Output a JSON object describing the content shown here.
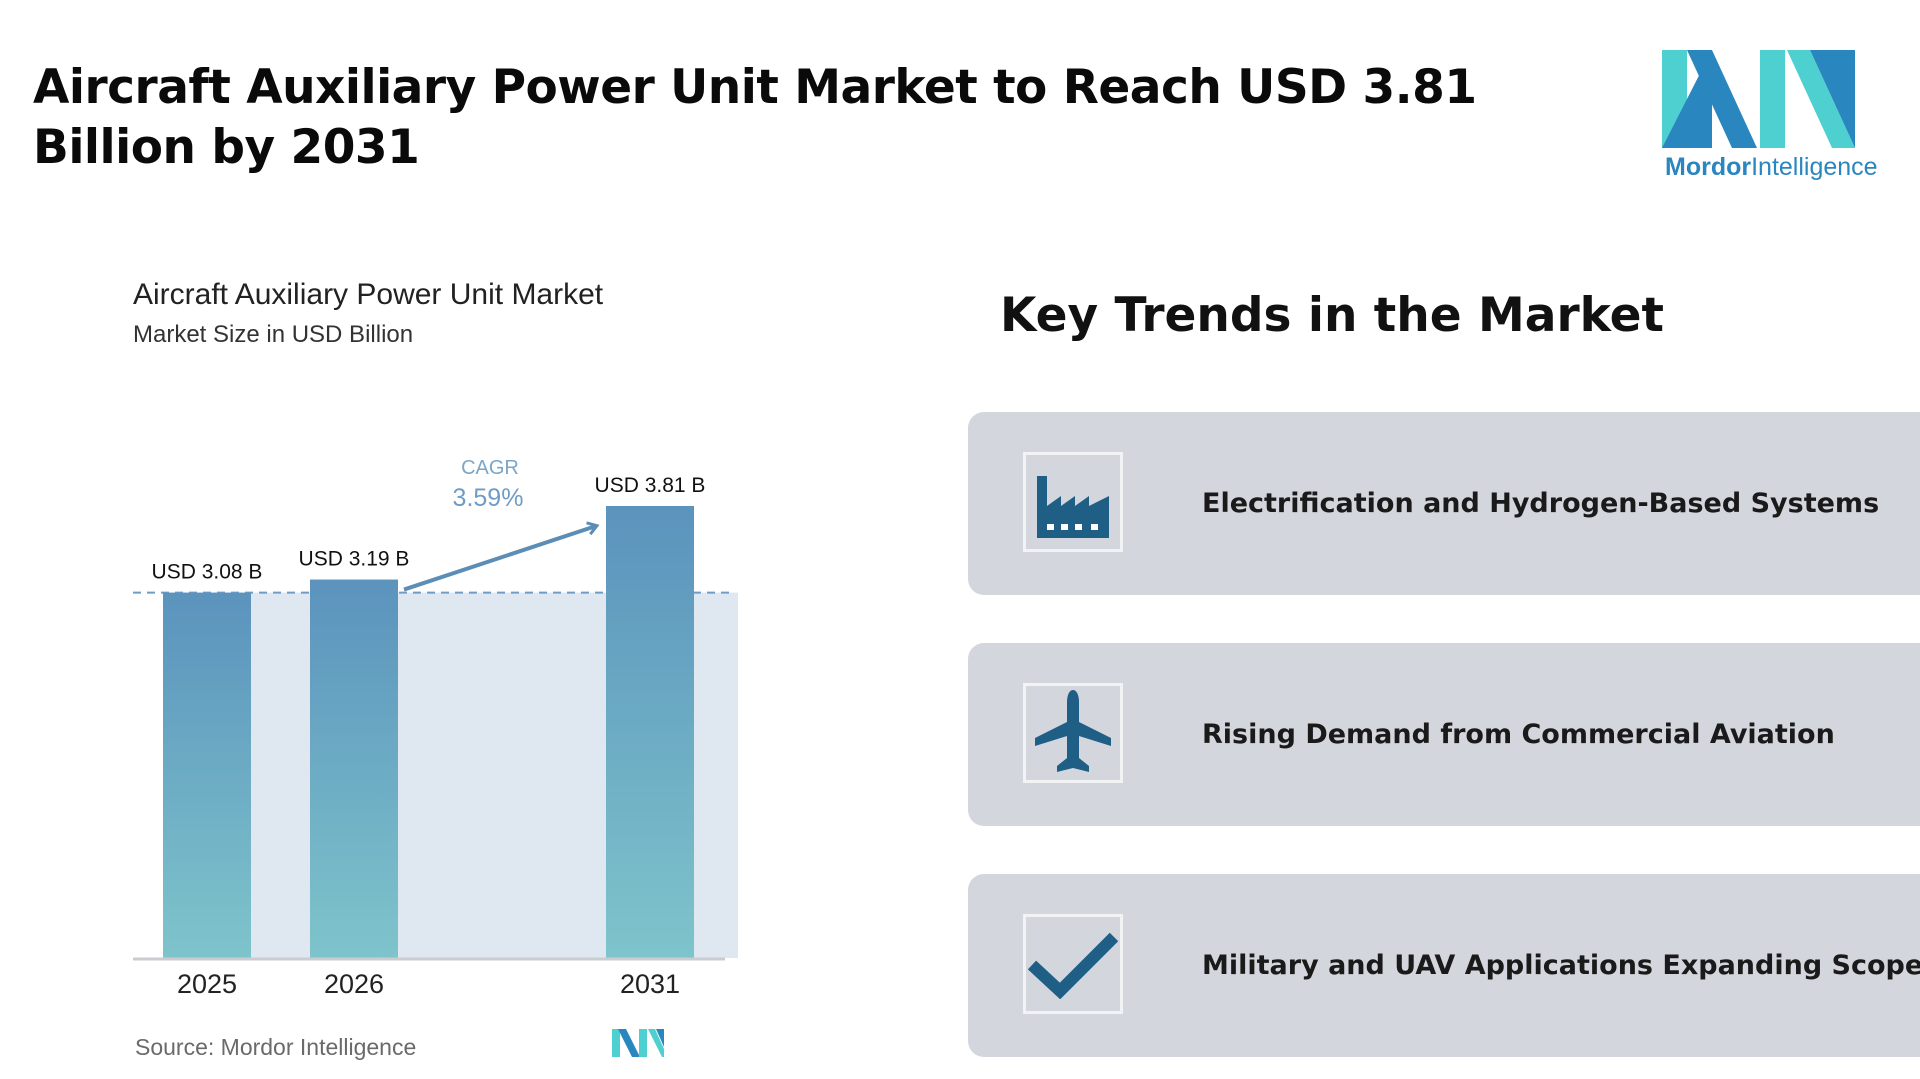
{
  "header": {
    "title": "Aircraft Auxiliary Power Unit Market to Reach USD 3.81 Billion by 2031",
    "logo_text_bold": "Mordor",
    "logo_text_light": "Intelligence"
  },
  "chart_data": {
    "type": "bar",
    "title": "Aircraft Auxiliary Power Unit Market",
    "subtitle": "Market Size in USD Billion",
    "categories": [
      "2025",
      "2026",
      "2031"
    ],
    "values": [
      3.08,
      3.19,
      3.81
    ],
    "data_labels": [
      "USD 3.08 B",
      "USD 3.19 B",
      "USD 3.81 B"
    ],
    "cagr_label": "CAGR",
    "cagr_value": "3.59%",
    "baseline_value": 3.08,
    "ylim": [
      0,
      3.81
    ],
    "grid": false,
    "colors": {
      "bar_top": "#5b93bd",
      "bar_bottom": "#7ec4cb",
      "shade": "#dfe8f1",
      "arrow": "#5b8db7",
      "dashed": "#6f9cc4"
    },
    "source": "Source: Mordor Intelligence"
  },
  "trends": {
    "title": "Key Trends in the Market",
    "items": [
      {
        "icon": "factory-icon",
        "label": "Electrification and Hydrogen-Based Systems"
      },
      {
        "icon": "airplane-icon",
        "label": "Rising Demand from Commercial Aviation"
      },
      {
        "icon": "checkmark-icon",
        "label": "Military and UAV Applications Expanding Scope"
      }
    ]
  },
  "colors": {
    "icon": "#1f5f86",
    "card": "#d3d6dc",
    "brand_dark": "#2a86bf",
    "brand_light": "#4fd0d0"
  }
}
